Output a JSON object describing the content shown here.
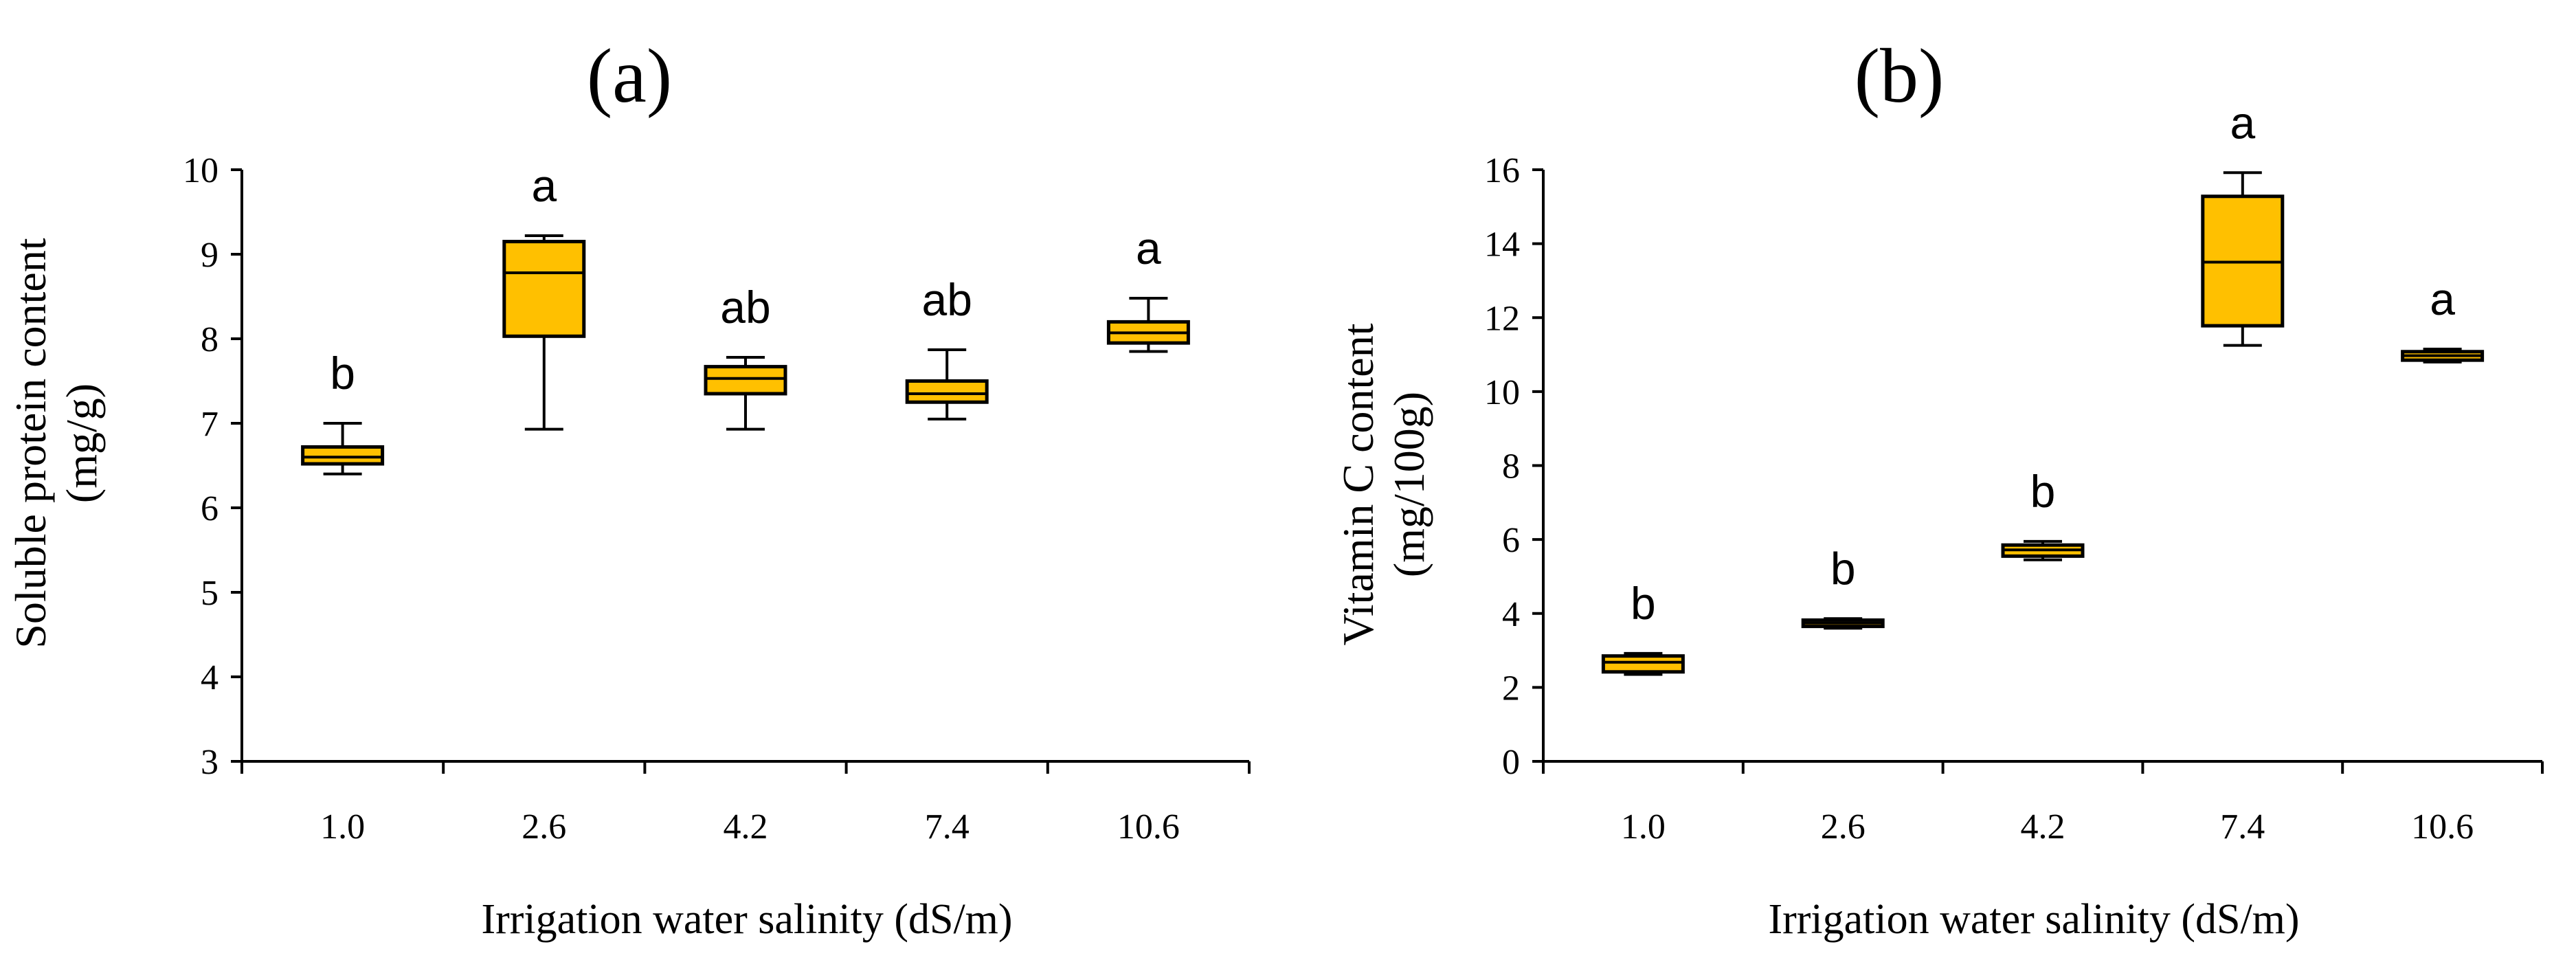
{
  "colors": {
    "box_fill": "#FFC000",
    "box_stroke": "#000000",
    "axis": "#000000",
    "background": "#FFFFFF"
  },
  "chart_data": [
    {
      "type": "boxplot",
      "panel_label": "(a)",
      "title": "",
      "xlabel": "Irrigation water salinity (dS/m)",
      "ylabel": "Soluble protein content",
      "ylabel_unit": "(mg/g)",
      "ylim": [
        3,
        10
      ],
      "yticks": [
        "3",
        "4",
        "5",
        "6",
        "7",
        "8",
        "9",
        "10"
      ],
      "categories": [
        "1.0",
        "2.6",
        "4.2",
        "7.4",
        "10.6"
      ],
      "boxes": [
        {
          "min": 6.4,
          "q1": 6.52,
          "median": 6.6,
          "q3": 6.72,
          "max": 7.0,
          "letter": "b"
        },
        {
          "min": 6.93,
          "q1": 8.03,
          "median": 8.78,
          "q3": 9.15,
          "max": 9.22,
          "letter": "a"
        },
        {
          "min": 6.93,
          "q1": 7.35,
          "median": 7.53,
          "q3": 7.67,
          "max": 7.78,
          "letter": "ab"
        },
        {
          "min": 7.05,
          "q1": 7.25,
          "median": 7.35,
          "q3": 7.5,
          "max": 7.87,
          "letter": "ab"
        },
        {
          "min": 7.85,
          "q1": 7.95,
          "median": 8.07,
          "q3": 8.2,
          "max": 8.48,
          "letter": "a"
        }
      ]
    },
    {
      "type": "boxplot",
      "panel_label": "(b)",
      "title": "",
      "xlabel": "Irrigation water salinity (dS/m)",
      "ylabel": "Vitamin C content",
      "ylabel_unit": "(mg/100g)",
      "ylim": [
        0,
        16
      ],
      "yticks": [
        "0",
        "2",
        "4",
        "6",
        "8",
        "10",
        "12",
        "14",
        "16"
      ],
      "categories": [
        "1.0",
        "2.6",
        "4.2",
        "7.4",
        "10.6"
      ],
      "boxes": [
        {
          "min": 2.35,
          "q1": 2.42,
          "median": 2.68,
          "q3": 2.85,
          "max": 2.92,
          "letter": "b"
        },
        {
          "min": 3.6,
          "q1": 3.65,
          "median": 3.74,
          "q3": 3.82,
          "max": 3.86,
          "letter": "b"
        },
        {
          "min": 5.45,
          "q1": 5.55,
          "median": 5.72,
          "q3": 5.85,
          "max": 5.95,
          "letter": "b"
        },
        {
          "min": 11.25,
          "q1": 11.78,
          "median": 13.5,
          "q3": 15.28,
          "max": 15.92,
          "letter": "a"
        },
        {
          "min": 10.8,
          "q1": 10.85,
          "median": 10.97,
          "q3": 11.08,
          "max": 11.15,
          "letter": "a"
        }
      ]
    }
  ]
}
